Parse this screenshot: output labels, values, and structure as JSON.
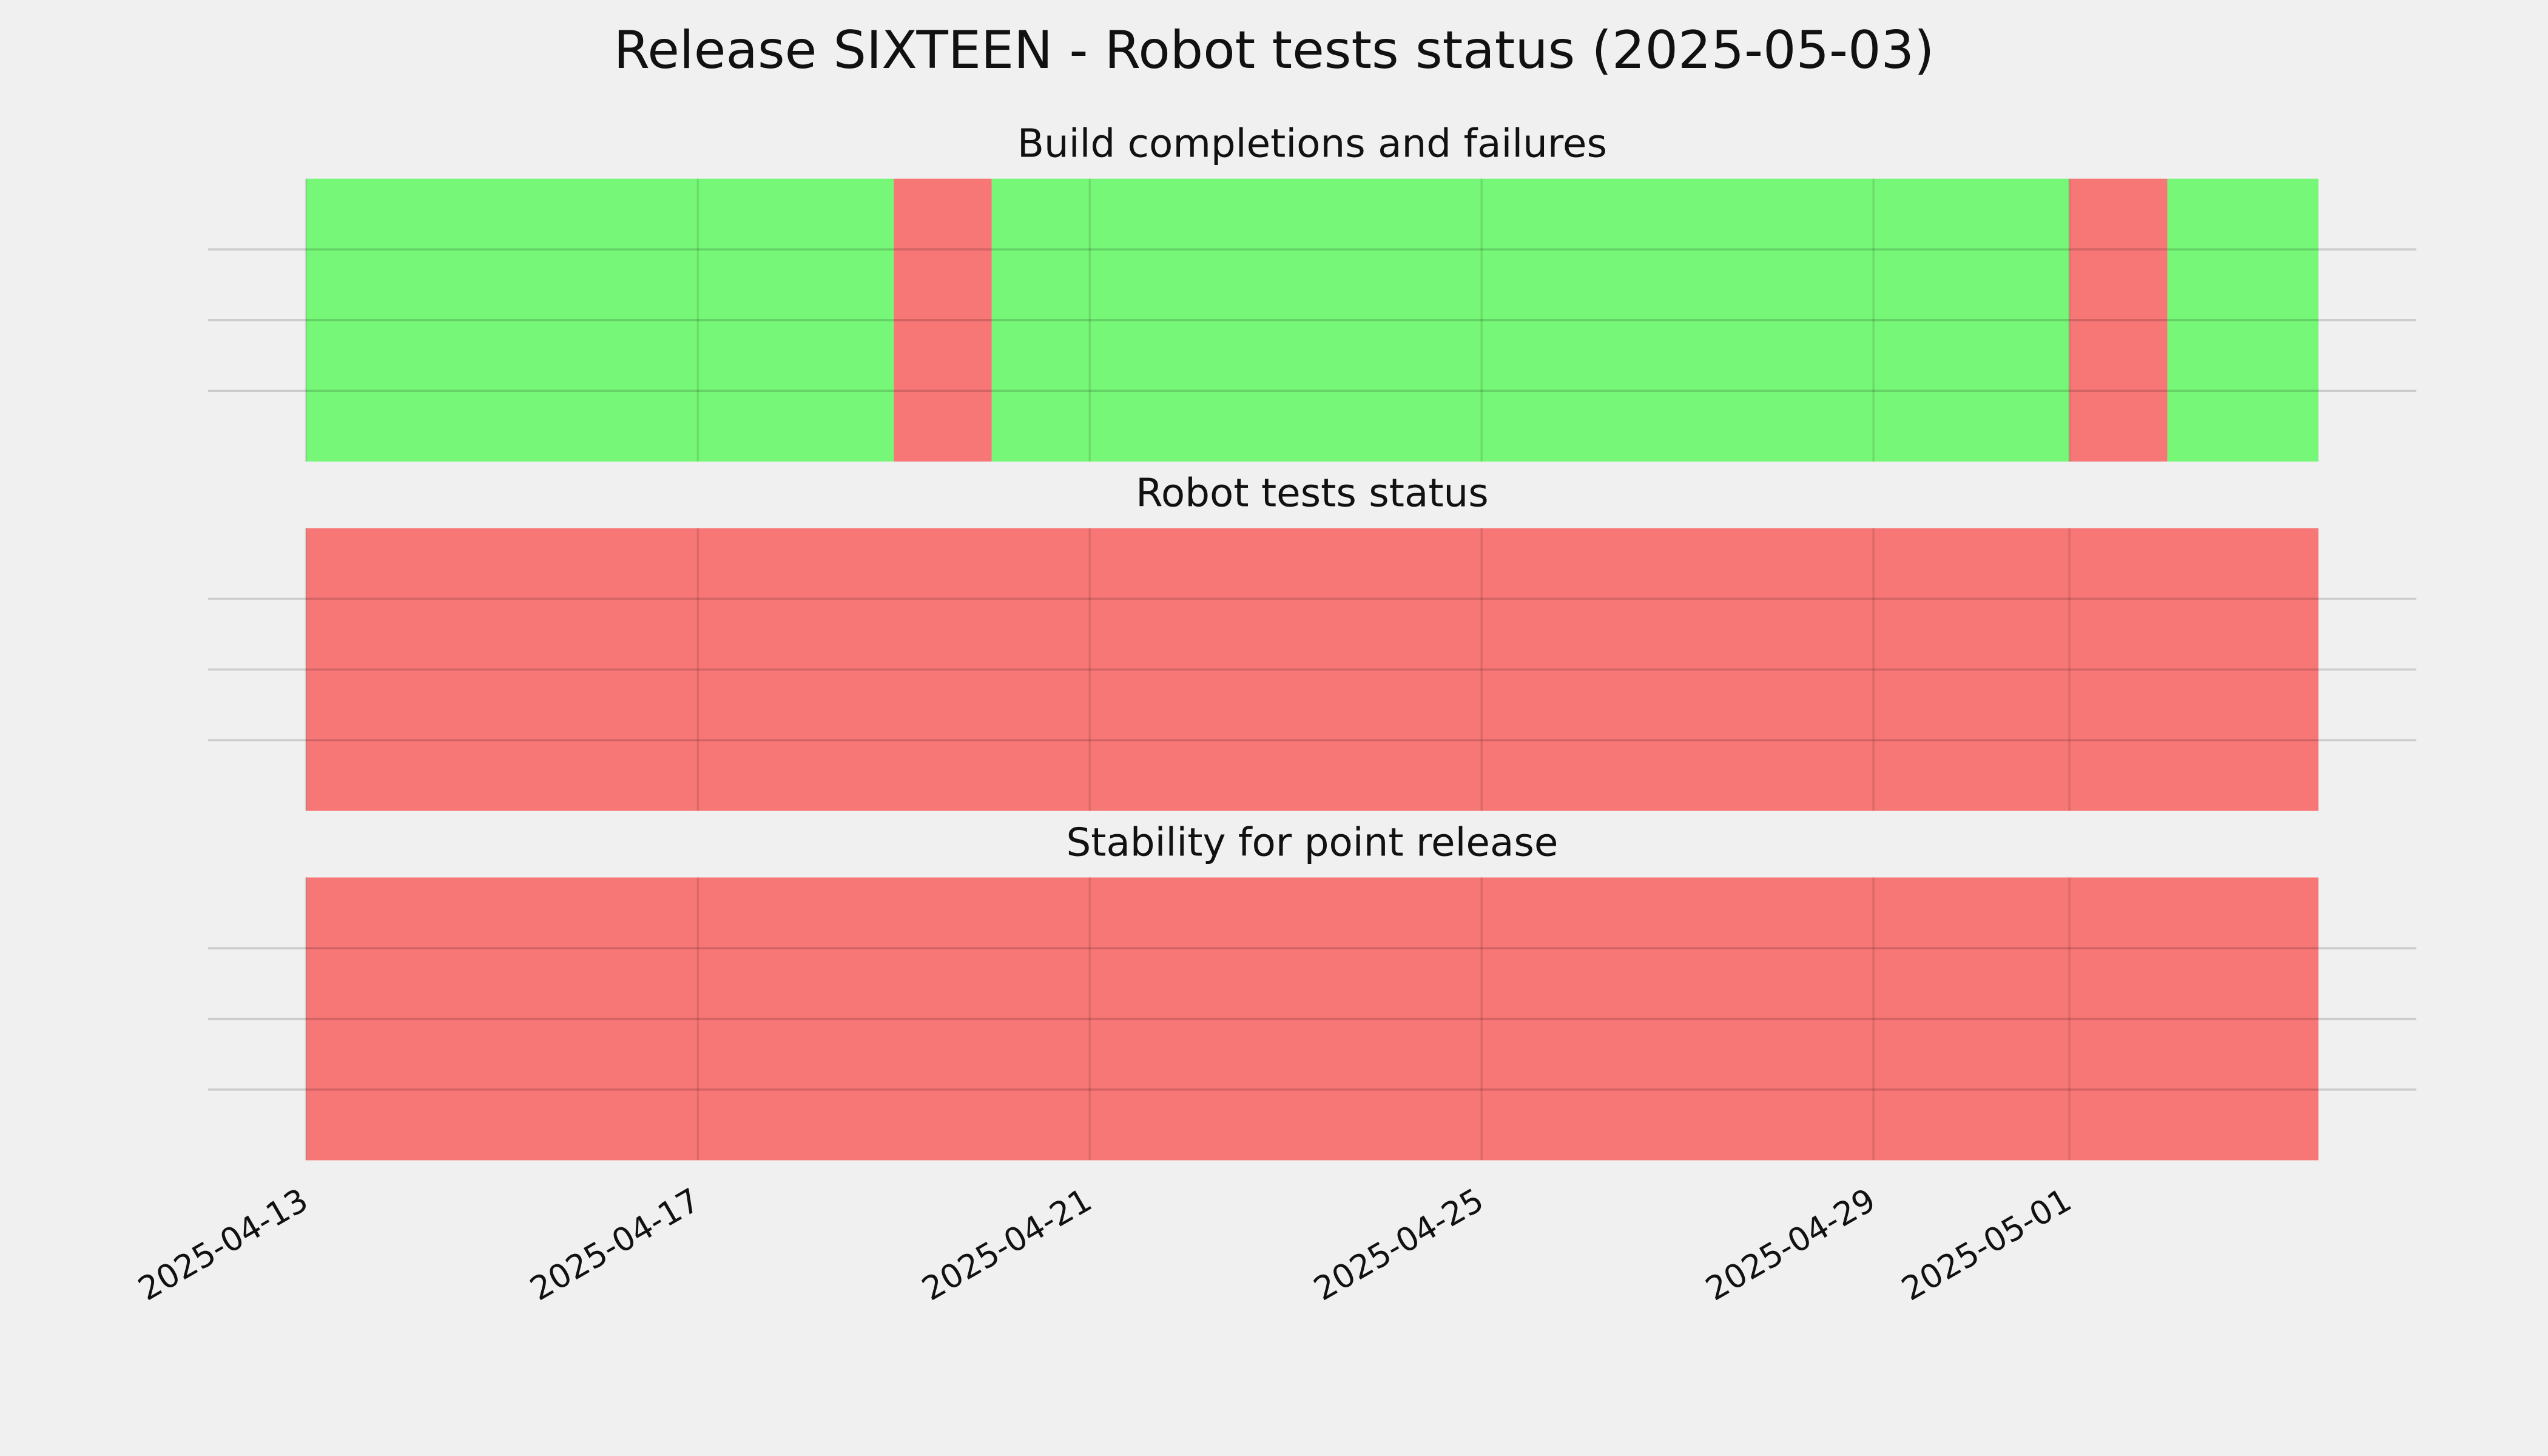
{
  "title": "Release SIXTEEN - Robot tests status (2025-05-03)",
  "chart_data": [
    {
      "type": "span",
      "title": "Build completions and failures",
      "xlim": [
        "2025-04-12",
        "2025-05-04T13:00:00Z"
      ],
      "xticks": [
        "2025-04-13",
        "2025-04-17",
        "2025-04-21",
        "2025-04-25",
        "2025-04-29",
        "2025-05-01"
      ],
      "ylim": [
        0,
        1
      ],
      "yticks": [
        0.25,
        0.5,
        0.75
      ],
      "grid": true,
      "spans": [
        {
          "start": "2025-04-13",
          "end": "2025-04-19",
          "color": "#77f777"
        },
        {
          "start": "2025-04-19",
          "end": "2025-04-20",
          "color": "#f77676"
        },
        {
          "start": "2025-04-20",
          "end": "2025-05-01",
          "color": "#77f777"
        },
        {
          "start": "2025-05-01",
          "end": "2025-05-02",
          "color": "#f77676"
        },
        {
          "start": "2025-05-02",
          "end": "2025-05-03T13:00:00Z",
          "color": "#77f777"
        }
      ]
    },
    {
      "type": "span",
      "title": "Robot tests status",
      "xlim": [
        "2025-04-12",
        "2025-05-04T13:00:00Z"
      ],
      "xticks": [
        "2025-04-13",
        "2025-04-17",
        "2025-04-21",
        "2025-04-25",
        "2025-04-29",
        "2025-05-01"
      ],
      "ylim": [
        0,
        1
      ],
      "yticks": [
        0.25,
        0.5,
        0.75
      ],
      "grid": true,
      "spans": [
        {
          "start": "2025-04-13",
          "end": "2025-05-03T13:00:00Z",
          "color": "#f77676"
        }
      ]
    },
    {
      "type": "span",
      "title": "Stability for point release",
      "xlim": [
        "2025-04-12",
        "2025-05-04T13:00:00Z"
      ],
      "xticks": [
        "2025-04-13",
        "2025-04-17",
        "2025-04-21",
        "2025-04-25",
        "2025-04-29",
        "2025-05-01"
      ],
      "ylim": [
        0,
        1
      ],
      "yticks": [
        0.25,
        0.5,
        0.75
      ],
      "grid": true,
      "show_xtick_labels": true,
      "spans": [
        {
          "start": "2025-04-13",
          "end": "2025-05-03T13:00:00Z",
          "color": "#f77676"
        }
      ]
    }
  ]
}
